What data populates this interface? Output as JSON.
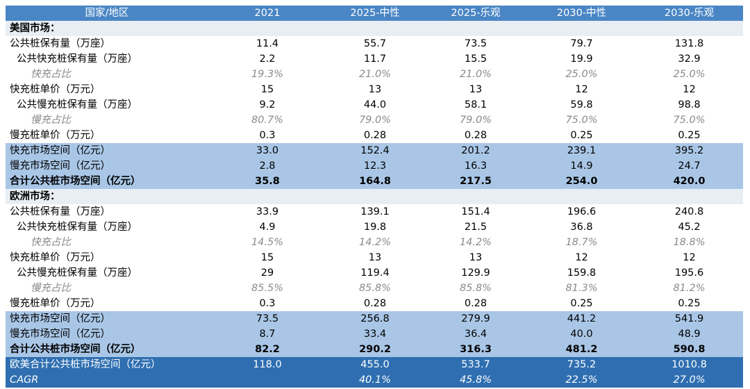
{
  "header": [
    "国家/地区",
    "2021",
    "2025-中性",
    "2025-乐观",
    "2030-中性",
    "2030-乐观"
  ],
  "rows": [
    {
      "type": "sec-title",
      "cells": [
        "美国市场：",
        "",
        "",
        "",
        "",
        ""
      ]
    },
    {
      "type": "plain",
      "cells": [
        "公共桩保有量（万座）",
        "11.4",
        "55.7",
        "73.5",
        "79.7",
        "131.8"
      ]
    },
    {
      "type": "indent",
      "cells": [
        "公共快充桩保有量（万座）",
        "2.2",
        "11.7",
        "15.5",
        "19.9",
        "32.9"
      ]
    },
    {
      "type": "italic-row",
      "cells": [
        "快充占比",
        "19.3%",
        "21.0%",
        "21.0%",
        "25.0%",
        "25.0%"
      ]
    },
    {
      "type": "plain",
      "cells": [
        "快充桩单价（万元）",
        "15",
        "13",
        "13",
        "12",
        "12"
      ]
    },
    {
      "type": "indent",
      "cells": [
        "公共慢充桩保有量（万座）",
        "9.2",
        "44.0",
        "58.1",
        "59.8",
        "98.8"
      ]
    },
    {
      "type": "italic-row",
      "cells": [
        "慢充占比",
        "80.7%",
        "79.0%",
        "79.0%",
        "75.0%",
        "75.0%"
      ]
    },
    {
      "type": "plain",
      "cells": [
        "慢充桩单价（万元）",
        "0.3",
        "0.28",
        "0.28",
        "0.25",
        "0.25"
      ]
    },
    {
      "type": "light",
      "cells": [
        "快充市场空间（亿元）",
        "33.0",
        "152.4",
        "201.2",
        "239.1",
        "395.2"
      ]
    },
    {
      "type": "light",
      "cells": [
        "慢充市场空间（亿元）",
        "2.8",
        "12.3",
        "16.3",
        "14.9",
        "24.7"
      ]
    },
    {
      "type": "light-bold",
      "cells": [
        "合计公共桩市场空间（亿元）",
        "35.8",
        "164.8",
        "217.5",
        "254.0",
        "420.0"
      ]
    },
    {
      "type": "sec-title",
      "cells": [
        "欧洲市场：",
        "",
        "",
        "",
        "",
        ""
      ]
    },
    {
      "type": "plain",
      "cells": [
        "公共桩保有量（万座）",
        "33.9",
        "139.1",
        "151.4",
        "196.6",
        "240.8"
      ]
    },
    {
      "type": "indent",
      "cells": [
        "公共快充桩保有量（万座）",
        "4.9",
        "19.8",
        "21.5",
        "36.8",
        "45.2"
      ]
    },
    {
      "type": "italic-row",
      "cells": [
        "快充占比",
        "14.5%",
        "14.2%",
        "14.2%",
        "18.7%",
        "18.8%"
      ]
    },
    {
      "type": "plain",
      "cells": [
        "快充桩单价（万元）",
        "15",
        "13",
        "13",
        "12",
        "12"
      ]
    },
    {
      "type": "indent",
      "cells": [
        "公共慢充桩保有量（万座）",
        "29",
        "119.4",
        "129.9",
        "159.8",
        "195.6"
      ]
    },
    {
      "type": "italic-row",
      "cells": [
        "慢充占比",
        "85.5%",
        "85.8%",
        "85.8%",
        "81.3%",
        "81.2%"
      ]
    },
    {
      "type": "plain",
      "cells": [
        "慢充桩单价（万元）",
        "0.3",
        "0.28",
        "0.28",
        "0.25",
        "0.25"
      ]
    },
    {
      "type": "light",
      "cells": [
        "快充市场空间（亿元）",
        "73.5",
        "256.8",
        "279.9",
        "441.2",
        "541.9"
      ]
    },
    {
      "type": "light",
      "cells": [
        "慢充市场空间（亿元）",
        "8.7",
        "33.4",
        "36.4",
        "40.0",
        "48.9"
      ]
    },
    {
      "type": "light-bold",
      "cells": [
        "合计公共桩市场空间（亿元）",
        "82.2",
        "290.2",
        "316.3",
        "481.2",
        "590.8"
      ]
    },
    {
      "type": "dark",
      "cells": [
        "欧美合计公共桩市场空间（亿元）",
        "118.0",
        "455.0",
        "533.7",
        "735.2",
        "1010.8"
      ]
    },
    {
      "type": "cagr",
      "cells": [
        "CAGR",
        "",
        "40.1%",
        "45.8%",
        "22.5%",
        "27.0%"
      ]
    }
  ]
}
